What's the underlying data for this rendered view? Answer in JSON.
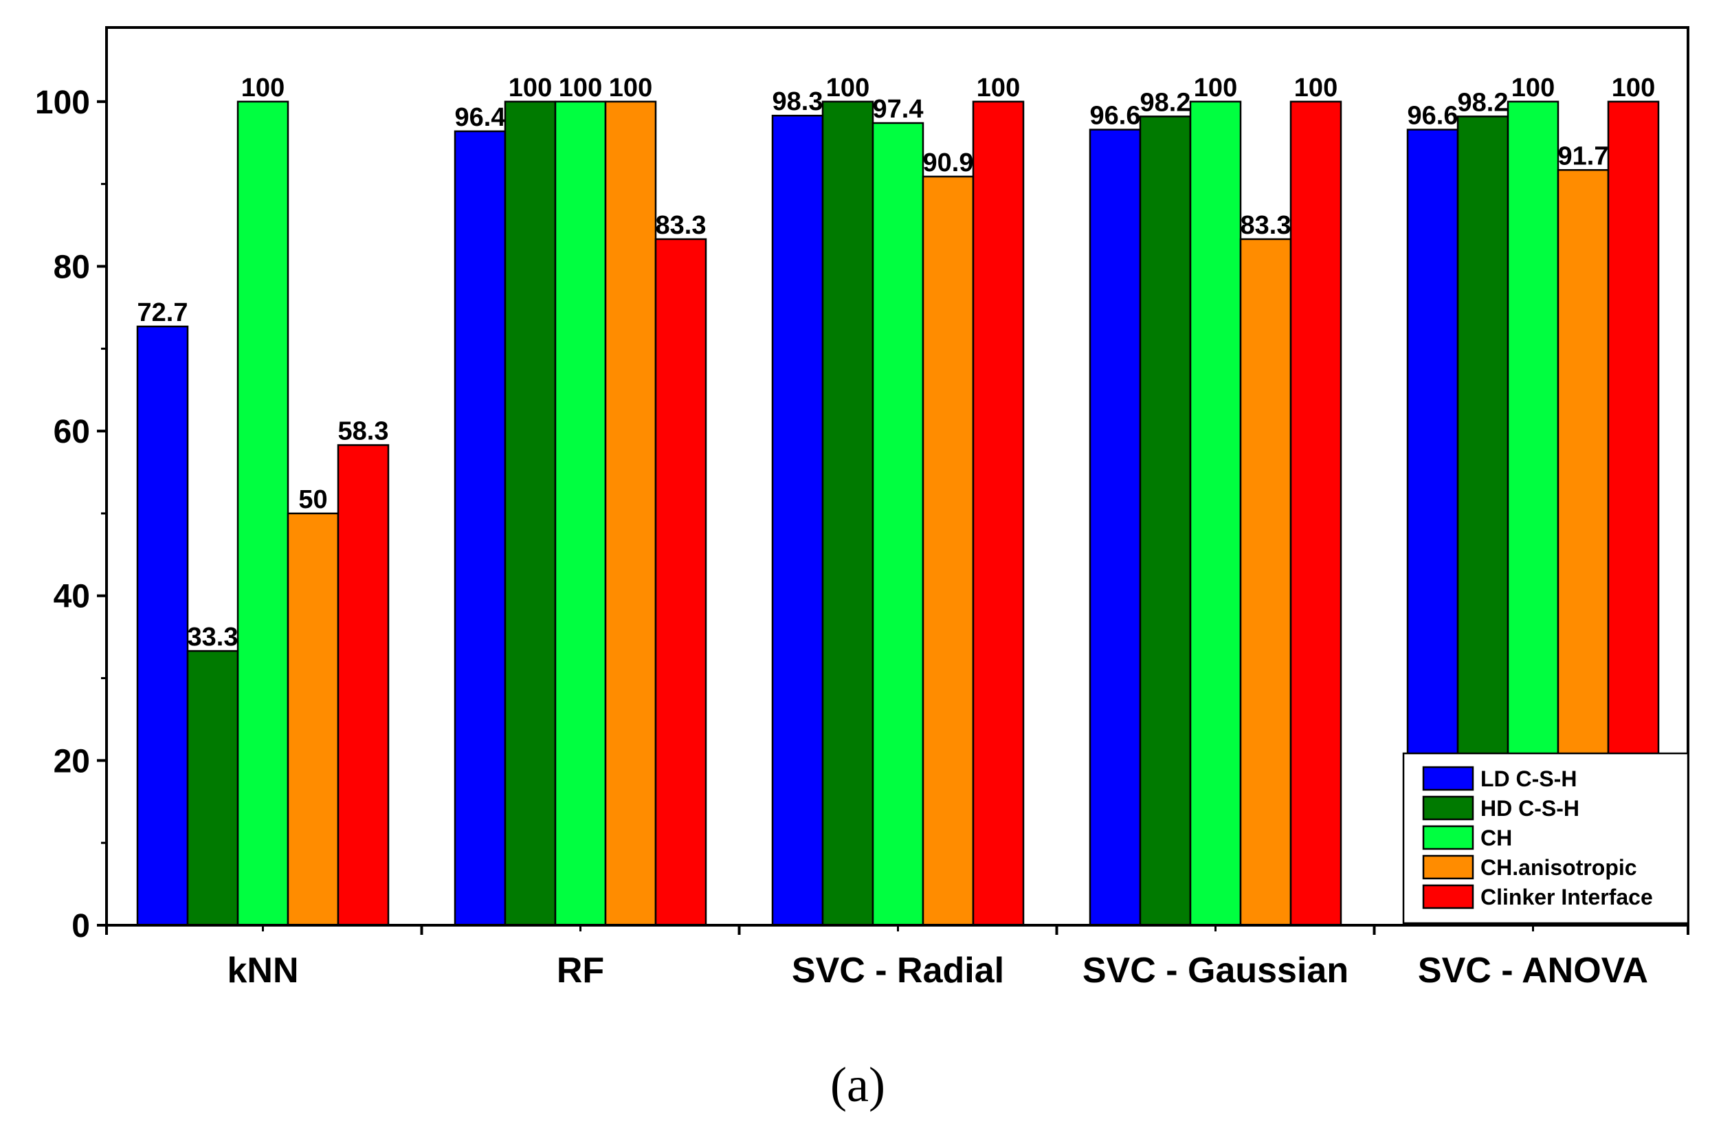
{
  "chart_data": {
    "type": "bar",
    "title": "",
    "xlabel": "",
    "ylabel": "",
    "ylim": [
      0,
      109
    ],
    "yticks": [
      0,
      20,
      40,
      60,
      80,
      100
    ],
    "y_tick_labels": [
      "0",
      "20",
      "40",
      "60",
      "80",
      "100"
    ],
    "categories": [
      "kNN",
      "RF",
      "SVC - Radial",
      "SVC - Gaussian",
      "SVC - ANOVA"
    ],
    "series": [
      {
        "name": "LD C-S-H",
        "color": "#0000ff",
        "values": [
          72.7,
          96.4,
          98.3,
          96.6,
          96.6
        ],
        "labels": [
          "72.7",
          "96.4",
          "98.3",
          "96.6",
          "96.6"
        ]
      },
      {
        "name": "HD C-S-H",
        "color": "#007a00",
        "values": [
          33.3,
          100,
          100,
          98.2,
          98.2
        ],
        "labels": [
          "33.3",
          "100",
          "100",
          "98.2",
          "98.2"
        ]
      },
      {
        "name": "CH",
        "color": "#00ff40",
        "values": [
          100,
          100,
          97.4,
          100,
          100
        ],
        "labels": [
          "100",
          "100",
          "97.4",
          "100",
          "100"
        ]
      },
      {
        "name": "CH.anisotropic",
        "color": "#ff8c00",
        "values": [
          50,
          100,
          90.9,
          83.3,
          91.7
        ],
        "labels": [
          "50",
          "100",
          "90.9",
          "83.3",
          "91.7"
        ]
      },
      {
        "name": "Clinker Interface",
        "color": "#ff0000",
        "values": [
          58.3,
          83.3,
          100,
          100,
          100
        ],
        "labels": [
          "58.3",
          "83.3",
          "100",
          "100",
          "100"
        ]
      }
    ],
    "legend_position": "bottom-right",
    "grid": false
  },
  "caption": "(a)"
}
